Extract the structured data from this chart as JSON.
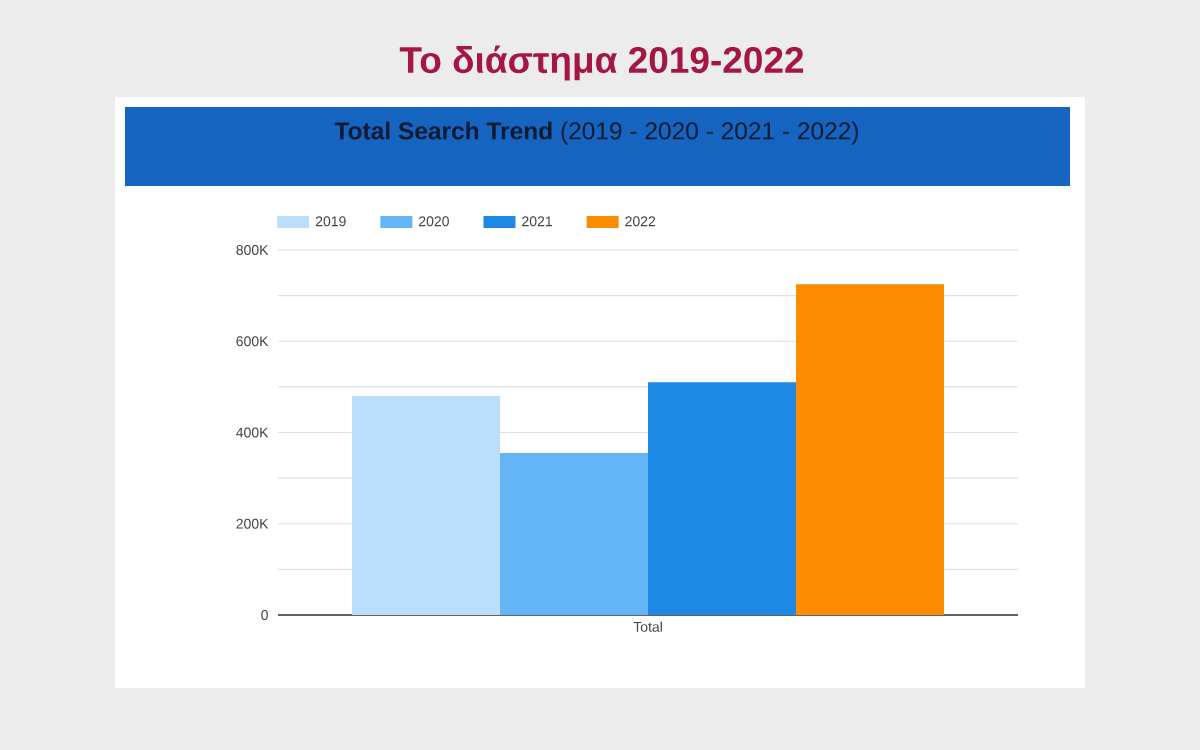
{
  "chart_data": {
    "type": "bar",
    "title": "Το διάστημα 2019-2022",
    "subtitle": "**Total Search Trend** (2019 - 2020 - 2021 - 2022)",
    "categories": [
      "Total"
    ],
    "series": [
      {
        "name": "2019",
        "color": "#bbdefb",
        "values": [
          480000
        ]
      },
      {
        "name": "2020",
        "color": "#64b5f6",
        "values": [
          355000
        ]
      },
      {
        "name": "2021",
        "color": "#1e88e5",
        "values": [
          510000
        ]
      },
      {
        "name": "2022",
        "color": "#fb8c00",
        "values": [
          725000
        ]
      }
    ],
    "ylim": [
      0,
      800000
    ],
    "yticks": [
      0,
      {
        "value": 100000,
        "label": null
      },
      {
        "value": 200000,
        "label": "200K"
      },
      {
        "value": 300000,
        "label": null
      },
      {
        "value": 400000,
        "label": "400K"
      },
      {
        "value": 500000,
        "label": null
      },
      {
        "value": 600000,
        "label": "600K"
      },
      {
        "value": 700000,
        "label": null
      },
      {
        "value": 800000,
        "label": "800K"
      }
    ],
    "grid": "y",
    "legend": "top left"
  }
}
